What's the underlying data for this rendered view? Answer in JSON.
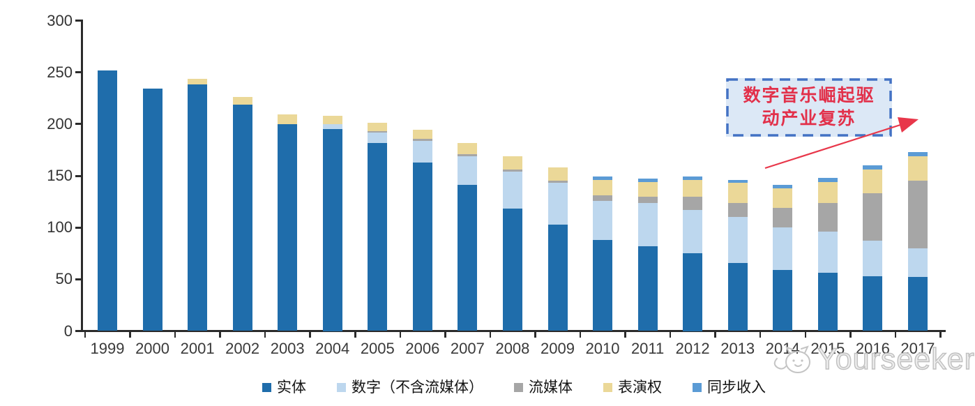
{
  "chart_data": {
    "type": "bar",
    "stacked": true,
    "categories": [
      "1999",
      "2000",
      "2001",
      "2002",
      "2003",
      "2004",
      "2005",
      "2006",
      "2007",
      "2008",
      "2009",
      "2010",
      "2011",
      "2012",
      "2013",
      "2014",
      "2015",
      "2016",
      "2017"
    ],
    "series": [
      {
        "name": "实体",
        "color": "#1f6dab",
        "values": [
          252,
          234,
          238,
          219,
          200,
          195,
          182,
          163,
          141,
          118,
          103,
          88,
          82,
          75,
          66,
          59,
          56,
          53,
          52
        ]
      },
      {
        "name": "数字（不含流媒体）",
        "color": "#bdd7ee",
        "values": [
          0,
          0,
          0,
          0,
          0,
          5,
          10,
          21,
          28,
          36,
          40,
          38,
          42,
          42,
          44,
          41,
          40,
          34,
          28
        ]
      },
      {
        "name": "流媒体",
        "color": "#a6a6a6",
        "values": [
          0,
          0,
          0,
          0,
          0,
          0,
          1,
          1.5,
          2,
          2,
          2,
          5,
          6,
          13,
          14,
          19,
          28,
          46,
          65
        ]
      },
      {
        "name": "表演权",
        "color": "#ebd898",
        "values": [
          0,
          0,
          6,
          7,
          9,
          8,
          8,
          9,
          11,
          13,
          13,
          15,
          14,
          16,
          19,
          19,
          20,
          23,
          24
        ]
      },
      {
        "name": "同步收入",
        "color": "#5b9bd5",
        "values": [
          0,
          0,
          0,
          0,
          0,
          0,
          0,
          0,
          0,
          0,
          0,
          3,
          3,
          3,
          3,
          3,
          4,
          4,
          4
        ]
      }
    ],
    "ylim": [
      0,
      300
    ],
    "yticks": [
      0,
      50,
      100,
      150,
      200,
      250,
      300
    ],
    "grid": false,
    "legend_position": "bottom"
  },
  "annotation": {
    "line1": "数字音乐崛起驱",
    "line2": "动产业复苏",
    "text_color": "#e2304a",
    "border_color": "#4472c4",
    "fill_color": "#dce8f6",
    "arrow_color": "#e8374a"
  },
  "watermark": {
    "text": "Yourseeker"
  }
}
